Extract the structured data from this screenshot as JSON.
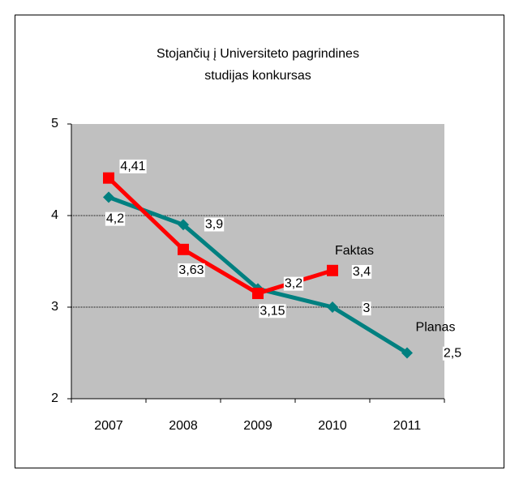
{
  "chart_data": {
    "type": "line",
    "title": [
      "Stojančių į Universiteto pagrindines",
      "studijas konkursas"
    ],
    "categories": [
      "2007",
      "2008",
      "2009",
      "2010",
      "2011"
    ],
    "series": [
      {
        "name": "Planas",
        "color": "#008080",
        "marker": "diamond",
        "values": [
          4.2,
          3.9,
          3.2,
          3,
          2.5
        ],
        "value_labels": [
          "4,2",
          "3,9",
          "3,2",
          "3",
          "2,5"
        ]
      },
      {
        "name": "Faktas",
        "color": "#ff0000",
        "marker": "square",
        "values": [
          4.41,
          3.63,
          3.15,
          3.4,
          null
        ],
        "value_labels": [
          "4,41",
          "3,63",
          "3,15",
          "3,4",
          null
        ]
      }
    ],
    "ylim": [
      2,
      5
    ],
    "yticks": [
      2,
      3,
      4,
      5
    ],
    "grid": true,
    "plot_background": "#c0c0c0"
  }
}
